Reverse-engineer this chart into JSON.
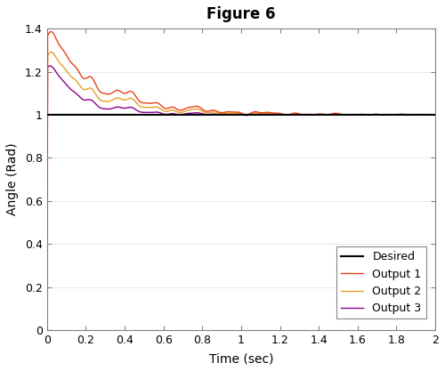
{
  "title": "Figure 6",
  "xlabel": "Time (sec)",
  "ylabel": "Angle (Rad)",
  "xlim": [
    0,
    2
  ],
  "ylim": [
    0,
    1.4
  ],
  "xticks": [
    0,
    0.2,
    0.4,
    0.6,
    0.8,
    1.0,
    1.2,
    1.4,
    1.6,
    1.8,
    2.0
  ],
  "yticks": [
    0,
    0.2,
    0.4,
    0.6,
    0.8,
    1.0,
    1.2,
    1.4
  ],
  "desired_value": 1.0,
  "colors": {
    "desired": "#000000",
    "output1": "#e8401c",
    "output2": "#e8a020",
    "output3": "#8b008b"
  },
  "legend_labels": [
    "Desired",
    "Output 1",
    "Output 2",
    "Output 3"
  ],
  "figsize": [
    5.0,
    4.17
  ],
  "dpi": 100,
  "bg_color": "#f5f5f5",
  "plot_bg_color": "#ffffff"
}
